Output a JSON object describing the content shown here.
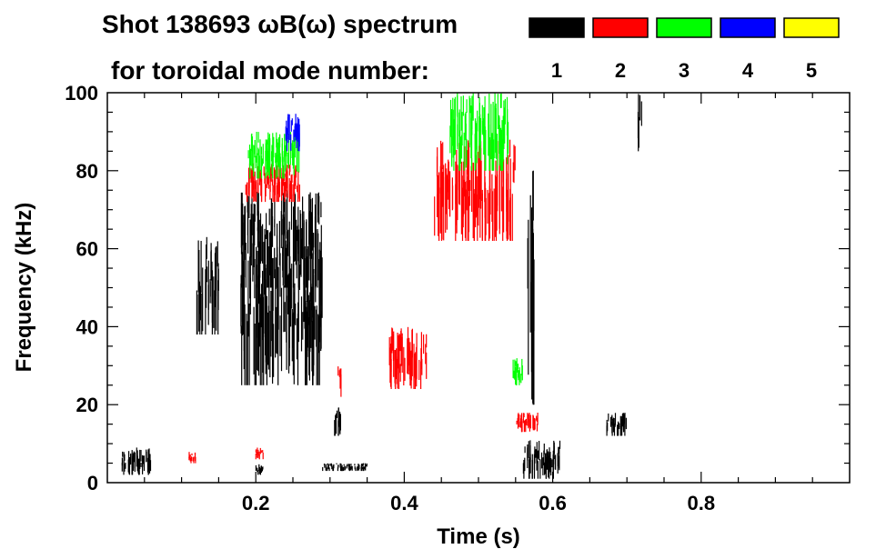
{
  "chart_data": {
    "type": "heatmap",
    "title_line1": "Shot 138693 ωB(ω) spectrum",
    "title_line2": "for toroidal mode number:",
    "xlabel": "Time (s)",
    "ylabel": "Frequency (kHz)",
    "xlim": [
      0.0,
      1.0
    ],
    "ylim": [
      0,
      100
    ],
    "xticks": [
      0.2,
      0.4,
      0.6,
      0.8
    ],
    "yticks": [
      0,
      20,
      40,
      60,
      80,
      100
    ],
    "x_minor_step": 0.05,
    "y_minor_step": 5,
    "legend": {
      "placement": "top-right",
      "entries": [
        {
          "label": "1",
          "color": "#000000"
        },
        {
          "label": "2",
          "color": "#ff0000"
        },
        {
          "label": "3",
          "color": "#00ff00"
        },
        {
          "label": "4",
          "color": "#0000ff"
        },
        {
          "label": "5",
          "color": "#ffff00"
        }
      ]
    },
    "regions": [
      {
        "mode": "1",
        "t": [
          0.02,
          0.06
        ],
        "f": [
          2,
          9
        ]
      },
      {
        "mode": "1",
        "t": [
          0.2,
          0.21
        ],
        "f": [
          2,
          5
        ]
      },
      {
        "mode": "1",
        "t": [
          0.29,
          0.35
        ],
        "f": [
          3,
          5
        ]
      },
      {
        "mode": "1",
        "t": [
          0.56,
          0.61
        ],
        "f": [
          1,
          11
        ]
      },
      {
        "mode": "1",
        "t": [
          0.12,
          0.15
        ],
        "f": [
          38,
          63
        ]
      },
      {
        "mode": "1",
        "t": [
          0.18,
          0.29
        ],
        "f": [
          50,
          75
        ]
      },
      {
        "mode": "1",
        "t": [
          0.18,
          0.29
        ],
        "f": [
          25,
          62
        ]
      },
      {
        "mode": "1",
        "t": [
          0.305,
          0.315
        ],
        "f": [
          12,
          20
        ]
      },
      {
        "mode": "1",
        "t": [
          0.565,
          0.575
        ],
        "f": [
          20,
          85
        ]
      },
      {
        "mode": "1",
        "t": [
          0.715,
          0.72
        ],
        "f": [
          85,
          100
        ]
      },
      {
        "mode": "1",
        "t": [
          0.67,
          0.7
        ],
        "f": [
          12,
          18
        ]
      },
      {
        "mode": "2",
        "t": [
          0.185,
          0.26
        ],
        "f": [
          72,
          82
        ]
      },
      {
        "mode": "2",
        "t": [
          0.31,
          0.315
        ],
        "f": [
          22,
          30
        ]
      },
      {
        "mode": "2",
        "t": [
          0.38,
          0.43
        ],
        "f": [
          24,
          40
        ]
      },
      {
        "mode": "2",
        "t": [
          0.44,
          0.55
        ],
        "f": [
          62,
          88
        ]
      },
      {
        "mode": "2",
        "t": [
          0.55,
          0.58
        ],
        "f": [
          13,
          18
        ]
      },
      {
        "mode": "2",
        "t": [
          0.11,
          0.12
        ],
        "f": [
          5,
          8
        ]
      },
      {
        "mode": "2",
        "t": [
          0.2,
          0.21
        ],
        "f": [
          6,
          9
        ]
      },
      {
        "mode": "3",
        "t": [
          0.19,
          0.26
        ],
        "f": [
          78,
          90
        ]
      },
      {
        "mode": "3",
        "t": [
          0.46,
          0.54
        ],
        "f": [
          80,
          100
        ]
      },
      {
        "mode": "3",
        "t": [
          0.545,
          0.56
        ],
        "f": [
          25,
          32
        ]
      },
      {
        "mode": "4",
        "t": [
          0.24,
          0.26
        ],
        "f": [
          85,
          95
        ]
      }
    ]
  }
}
